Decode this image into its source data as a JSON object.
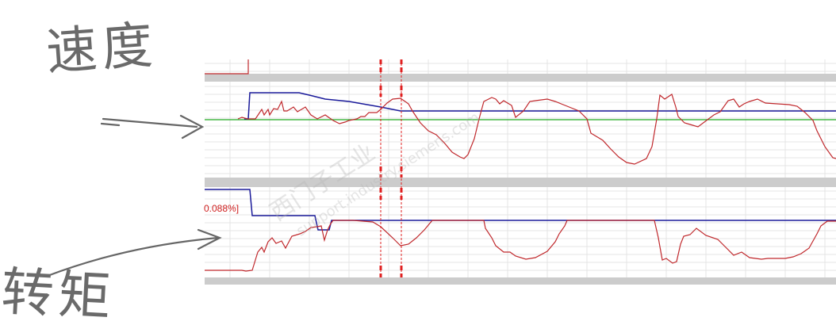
{
  "annotations": {
    "speed_label": "速度",
    "torque_label": "转矩"
  },
  "trace": {
    "percent_readout": "0.088%]",
    "cursor_count": 2,
    "colors": {
      "actual": "#c0282c",
      "setpoint": "#1a1a9a",
      "reference": "#22aa22",
      "cursor": "#e02020",
      "separator": "#cccccc",
      "grid": "#e4e4e4"
    }
  },
  "watermark": {
    "text": "西门子工业",
    "url": "support.industry.siemens.com"
  }
}
